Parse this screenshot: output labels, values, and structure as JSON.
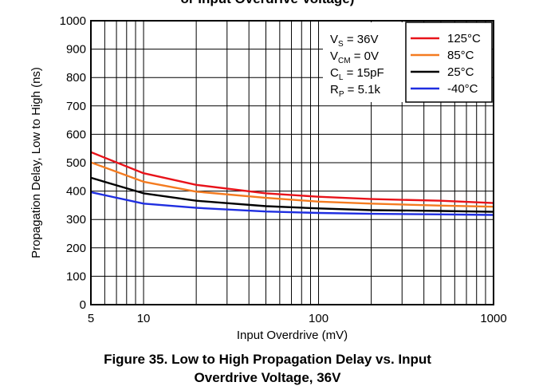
{
  "header_fragment": "or Input Overdrive Voltage)",
  "caption": {
    "line1": "Figure 35. Low to High Propagation Delay vs. Input",
    "line2": "Overdrive Voltage, 36V"
  },
  "conditions": [
    {
      "main": "V",
      "sub": "S",
      "rest": " = 36V"
    },
    {
      "main": "V",
      "sub": "CM",
      "rest": " = 0V"
    },
    {
      "main": "C",
      "sub": "L",
      "rest": " = 15pF"
    },
    {
      "main": "R",
      "sub": "P",
      "rest": " = 5.1k"
    }
  ],
  "chart_data": {
    "type": "line",
    "title": "",
    "xlabel": "Input Overdrive (mV)",
    "ylabel": "Propagation Delay, Low to High (ns)",
    "xscale": "log",
    "xlim": [
      5,
      1000
    ],
    "ylim": [
      0,
      1000
    ],
    "xticks": [
      5,
      10,
      100,
      1000
    ],
    "yticks": [
      0,
      100,
      200,
      300,
      400,
      500,
      600,
      700,
      800,
      900,
      1000
    ],
    "grid": true,
    "legend_position": "top-right",
    "series": [
      {
        "name": "125°C",
        "color": "#e8131a",
        "x": [
          5,
          10,
          20,
          50,
          100,
          200,
          500,
          1000
        ],
        "y": [
          537,
          463,
          422,
          392,
          380,
          372,
          366,
          358
        ]
      },
      {
        "name": "85°C",
        "color": "#f47b20",
        "x": [
          5,
          10,
          20,
          50,
          100,
          200,
          500,
          1000
        ],
        "y": [
          501,
          433,
          398,
          376,
          363,
          356,
          349,
          345
        ]
      },
      {
        "name": "25°C",
        "color": "#000000",
        "x": [
          5,
          10,
          20,
          50,
          100,
          200,
          500,
          1000
        ],
        "y": [
          447,
          392,
          366,
          347,
          339,
          333,
          330,
          327
        ]
      },
      {
        "name": "-40°C",
        "color": "#1f2ee0",
        "x": [
          5,
          10,
          20,
          50,
          100,
          200,
          500,
          1000
        ],
        "y": [
          396,
          356,
          341,
          328,
          323,
          320,
          318,
          316
        ]
      }
    ]
  }
}
